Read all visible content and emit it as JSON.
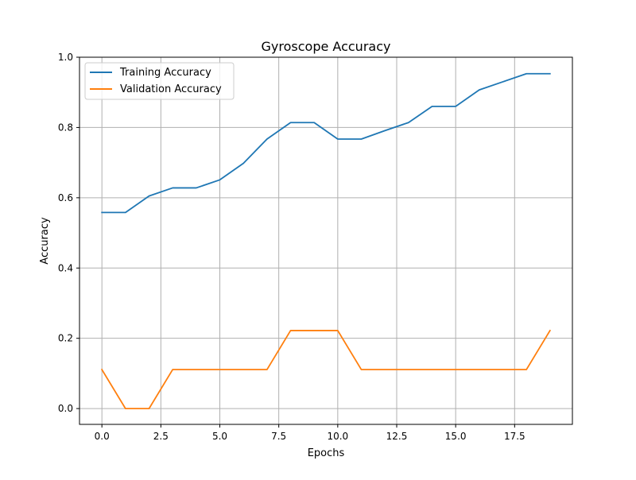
{
  "chart_data": {
    "type": "line",
    "title": "Gyroscope Accuracy",
    "xlabel": "Epochs",
    "ylabel": "Accuracy",
    "xlim": [
      -0.95,
      19.95
    ],
    "ylim": [
      -0.045,
      1.0
    ],
    "xticks": [
      0.0,
      2.5,
      5.0,
      7.5,
      10.0,
      12.5,
      15.0,
      17.5
    ],
    "xtick_labels": [
      "0.0",
      "2.5",
      "5.0",
      "7.5",
      "10.0",
      "12.5",
      "15.0",
      "17.5"
    ],
    "yticks": [
      0.0,
      0.2,
      0.4,
      0.6,
      0.8,
      1.0
    ],
    "ytick_labels": [
      "0.0",
      "0.2",
      "0.4",
      "0.6",
      "0.8",
      "1.0"
    ],
    "grid": true,
    "legend_position": "top-left",
    "x": [
      0,
      1,
      2,
      3,
      4,
      5,
      6,
      7,
      8,
      9,
      10,
      11,
      12,
      13,
      14,
      15,
      16,
      17,
      18,
      19
    ],
    "series": [
      {
        "name": "Training Accuracy",
        "color": "#1f77b4",
        "values": [
          0.558,
          0.558,
          0.605,
          0.628,
          0.628,
          0.651,
          0.698,
          0.767,
          0.814,
          0.814,
          0.767,
          0.767,
          0.791,
          0.814,
          0.86,
          0.86,
          0.907,
          0.93,
          0.953,
          0.953
        ]
      },
      {
        "name": "Validation Accuracy",
        "color": "#ff7f0e",
        "values": [
          0.111,
          0.0,
          0.0,
          0.111,
          0.111,
          0.111,
          0.111,
          0.111,
          0.222,
          0.222,
          0.222,
          0.111,
          0.111,
          0.111,
          0.111,
          0.111,
          0.111,
          0.111,
          0.111,
          0.222
        ]
      }
    ]
  }
}
